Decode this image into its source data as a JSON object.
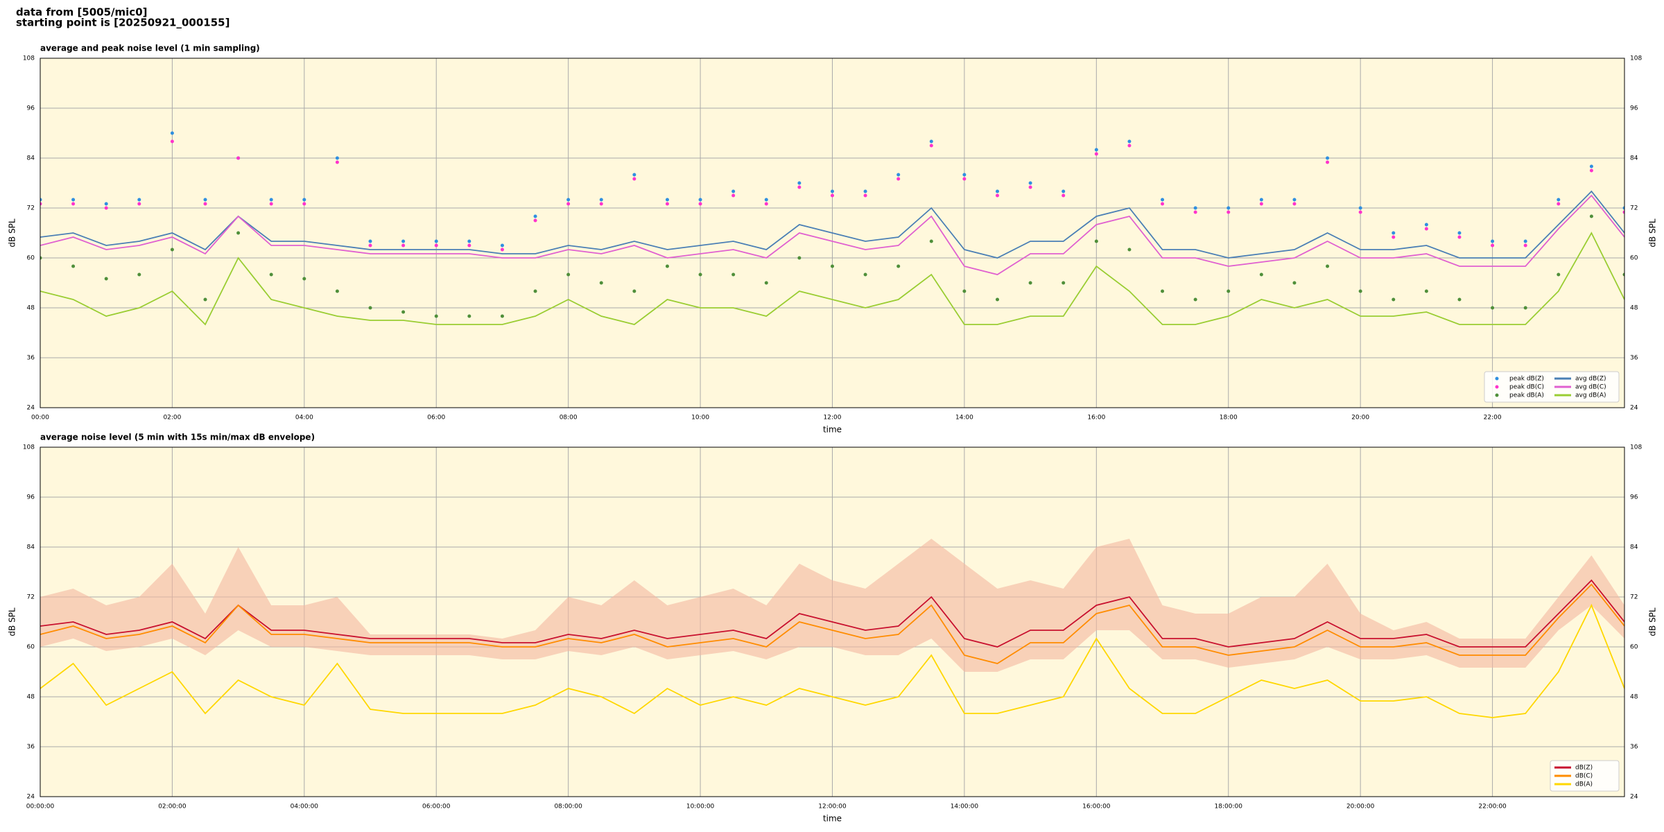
{
  "header": [
    "data from [5005/mic0]",
    "starting point is [20250921_000155]"
  ],
  "chart_data": [
    {
      "type": "line",
      "title": "average and peak noise level (1 min sampling)",
      "xlabel": "time",
      "ylabel": "dB SPL",
      "x": [
        0,
        0.5,
        1,
        1.5,
        2,
        2.5,
        3,
        3.5,
        4,
        4.5,
        5,
        5.5,
        6,
        6.5,
        7,
        7.5,
        8,
        8.5,
        9,
        9.5,
        10,
        10.5,
        11,
        11.5,
        12,
        12.5,
        13,
        13.5,
        14,
        14.5,
        15,
        15.5,
        16,
        16.5,
        17,
        17.5,
        18,
        18.5,
        19,
        19.5,
        20,
        20.5,
        21,
        21.5,
        22,
        22.5,
        23,
        23.5,
        24
      ],
      "xlim": [
        0,
        24
      ],
      "xticks": [
        {
          "value": 0,
          "label": "00:00"
        },
        {
          "value": 2,
          "label": "02:00"
        },
        {
          "value": 4,
          "label": "04:00"
        },
        {
          "value": 6,
          "label": "06:00"
        },
        {
          "value": 8,
          "label": "08:00"
        },
        {
          "value": 10,
          "label": "10:00"
        },
        {
          "value": 12,
          "label": "12:00"
        },
        {
          "value": 14,
          "label": "14:00"
        },
        {
          "value": 16,
          "label": "16:00"
        },
        {
          "value": 18,
          "label": "18:00"
        },
        {
          "value": 20,
          "label": "20:00"
        },
        {
          "value": 22,
          "label": "22:00"
        }
      ],
      "ylim": [
        24,
        108
      ],
      "yticks": [
        24,
        36,
        48,
        60,
        72,
        84,
        96,
        108
      ],
      "grid": true,
      "background": "#fff8dc",
      "legend": "lower right",
      "legend_columns": 2,
      "series": [
        {
          "name": "peak dB(Z)",
          "kind": "scatter",
          "color": "#2f8fe0",
          "values": [
            74,
            74,
            73,
            74,
            90,
            74,
            84,
            74,
            74,
            84,
            64,
            64,
            64,
            64,
            63,
            70,
            74,
            74,
            80,
            74,
            74,
            76,
            74,
            78,
            76,
            76,
            80,
            88,
            80,
            76,
            78,
            76,
            86,
            88,
            74,
            72,
            72,
            74,
            74,
            84,
            72,
            66,
            68,
            66,
            64,
            64,
            74,
            82,
            72
          ]
        },
        {
          "name": "peak dB(C)",
          "kind": "scatter",
          "color": "#ff33cc",
          "values": [
            73,
            73,
            72,
            73,
            88,
            73,
            84,
            73,
            73,
            83,
            63,
            63,
            63,
            63,
            62,
            69,
            73,
            73,
            79,
            73,
            73,
            75,
            73,
            77,
            75,
            75,
            79,
            87,
            79,
            75,
            77,
            75,
            85,
            87,
            73,
            71,
            71,
            73,
            73,
            83,
            71,
            65,
            67,
            65,
            63,
            63,
            73,
            81,
            71
          ]
        },
        {
          "name": "peak dB(A)",
          "kind": "scatter",
          "color": "#4f8f3a",
          "values": [
            60,
            58,
            55,
            56,
            62,
            50,
            66,
            56,
            55,
            52,
            48,
            47,
            46,
            46,
            46,
            52,
            56,
            54,
            52,
            58,
            56,
            56,
            54,
            60,
            58,
            56,
            58,
            64,
            52,
            50,
            54,
            54,
            64,
            62,
            52,
            50,
            52,
            56,
            54,
            58,
            52,
            50,
            52,
            50,
            48,
            48,
            56,
            70,
            56
          ]
        },
        {
          "name": "avg dB(Z)",
          "kind": "line",
          "color": "#4a7fb5",
          "values": [
            65,
            66,
            63,
            64,
            66,
            62,
            70,
            64,
            64,
            63,
            62,
            62,
            62,
            62,
            61,
            61,
            63,
            62,
            64,
            62,
            63,
            64,
            62,
            68,
            66,
            64,
            65,
            72,
            62,
            60,
            64,
            64,
            70,
            72,
            62,
            62,
            60,
            61,
            62,
            66,
            62,
            62,
            63,
            60,
            60,
            60,
            68,
            76,
            66
          ]
        },
        {
          "name": "avg dB(C)",
          "kind": "line",
          "color": "#e060d0",
          "values": [
            63,
            65,
            62,
            63,
            65,
            61,
            70,
            63,
            63,
            62,
            61,
            61,
            61,
            61,
            60,
            60,
            62,
            61,
            63,
            60,
            61,
            62,
            60,
            66,
            64,
            62,
            63,
            70,
            58,
            56,
            61,
            61,
            68,
            70,
            60,
            60,
            58,
            59,
            60,
            64,
            60,
            60,
            61,
            58,
            58,
            58,
            67,
            75,
            65
          ]
        },
        {
          "name": "avg dB(A)",
          "kind": "line",
          "color": "#9acd32",
          "values": [
            52,
            50,
            46,
            48,
            52,
            44,
            60,
            50,
            48,
            46,
            45,
            45,
            44,
            44,
            44,
            46,
            50,
            46,
            44,
            50,
            48,
            48,
            46,
            52,
            50,
            48,
            50,
            56,
            44,
            44,
            46,
            46,
            58,
            52,
            44,
            44,
            46,
            50,
            48,
            50,
            46,
            46,
            47,
            44,
            44,
            44,
            52,
            66,
            50
          ]
        }
      ]
    },
    {
      "type": "line",
      "title": "average noise level (5 min with 15s min/max dB envelope)",
      "xlabel": "time",
      "ylabel": "dB SPL",
      "x": [
        0,
        0.5,
        1,
        1.5,
        2,
        2.5,
        3,
        3.5,
        4,
        4.5,
        5,
        5.5,
        6,
        6.5,
        7,
        7.5,
        8,
        8.5,
        9,
        9.5,
        10,
        10.5,
        11,
        11.5,
        12,
        12.5,
        13,
        13.5,
        14,
        14.5,
        15,
        15.5,
        16,
        16.5,
        17,
        17.5,
        18,
        18.5,
        19,
        19.5,
        20,
        20.5,
        21,
        21.5,
        22,
        22.5,
        23,
        23.5,
        24
      ],
      "xlim": [
        0,
        24
      ],
      "xticks": [
        {
          "value": 0,
          "label": "00:00:00"
        },
        {
          "value": 2,
          "label": "02:00:00"
        },
        {
          "value": 4,
          "label": "04:00:00"
        },
        {
          "value": 6,
          "label": "06:00:00"
        },
        {
          "value": 8,
          "label": "08:00:00"
        },
        {
          "value": 10,
          "label": "10:00:00"
        },
        {
          "value": 12,
          "label": "12:00:00"
        },
        {
          "value": 14,
          "label": "14:00:00"
        },
        {
          "value": 16,
          "label": "16:00:00"
        },
        {
          "value": 18,
          "label": "18:00:00"
        },
        {
          "value": 20,
          "label": "20:00:00"
        },
        {
          "value": 22,
          "label": "22:00:00"
        }
      ],
      "ylim": [
        24,
        108
      ],
      "yticks": [
        24,
        36,
        48,
        60,
        72,
        84,
        96,
        108
      ],
      "grid": true,
      "background": "#fff8dc",
      "legend": "lower right",
      "legend_columns": 1,
      "envelope": {
        "color": "#f4b8a0",
        "high": [
          72,
          74,
          70,
          72,
          80,
          68,
          84,
          70,
          70,
          72,
          63,
          63,
          63,
          63,
          62,
          64,
          72,
          70,
          76,
          70,
          72,
          74,
          70,
          80,
          76,
          74,
          80,
          86,
          80,
          74,
          76,
          74,
          84,
          86,
          70,
          68,
          68,
          72,
          72,
          80,
          68,
          64,
          66,
          62,
          62,
          62,
          72,
          82,
          70
        ],
        "low": [
          60,
          62,
          59,
          60,
          62,
          58,
          64,
          60,
          60,
          59,
          58,
          58,
          58,
          58,
          57,
          57,
          59,
          58,
          60,
          57,
          58,
          59,
          57,
          60,
          60,
          58,
          58,
          62,
          54,
          54,
          57,
          57,
          64,
          64,
          57,
          57,
          55,
          56,
          57,
          60,
          57,
          57,
          58,
          55,
          55,
          55,
          64,
          70,
          62
        ]
      },
      "series": [
        {
          "name": "dB(Z)",
          "kind": "line",
          "color": "#c8102e",
          "values": [
            65,
            66,
            63,
            64,
            66,
            62,
            70,
            64,
            64,
            63,
            62,
            62,
            62,
            62,
            61,
            61,
            63,
            62,
            64,
            62,
            63,
            64,
            62,
            68,
            66,
            64,
            65,
            72,
            62,
            60,
            64,
            64,
            70,
            72,
            62,
            62,
            60,
            61,
            62,
            66,
            62,
            62,
            63,
            60,
            60,
            60,
            68,
            76,
            66
          ]
        },
        {
          "name": "dB(C)",
          "kind": "line",
          "color": "#ff8c00",
          "values": [
            63,
            65,
            62,
            63,
            65,
            61,
            70,
            63,
            63,
            62,
            61,
            61,
            61,
            61,
            60,
            60,
            62,
            61,
            63,
            60,
            61,
            62,
            60,
            66,
            64,
            62,
            63,
            70,
            58,
            56,
            61,
            61,
            68,
            70,
            60,
            60,
            58,
            59,
            60,
            64,
            60,
            60,
            61,
            58,
            58,
            58,
            67,
            75,
            65
          ]
        },
        {
          "name": "dB(A)",
          "kind": "line",
          "color": "#ffd700",
          "values": [
            50,
            56,
            46,
            50,
            54,
            44,
            52,
            48,
            46,
            56,
            45,
            44,
            44,
            44,
            44,
            46,
            50,
            48,
            44,
            50,
            46,
            48,
            46,
            50,
            48,
            46,
            48,
            58,
            44,
            44,
            46,
            48,
            62,
            50,
            44,
            44,
            48,
            52,
            50,
            52,
            47,
            47,
            48,
            44,
            43,
            44,
            54,
            70,
            50
          ]
        }
      ]
    }
  ]
}
